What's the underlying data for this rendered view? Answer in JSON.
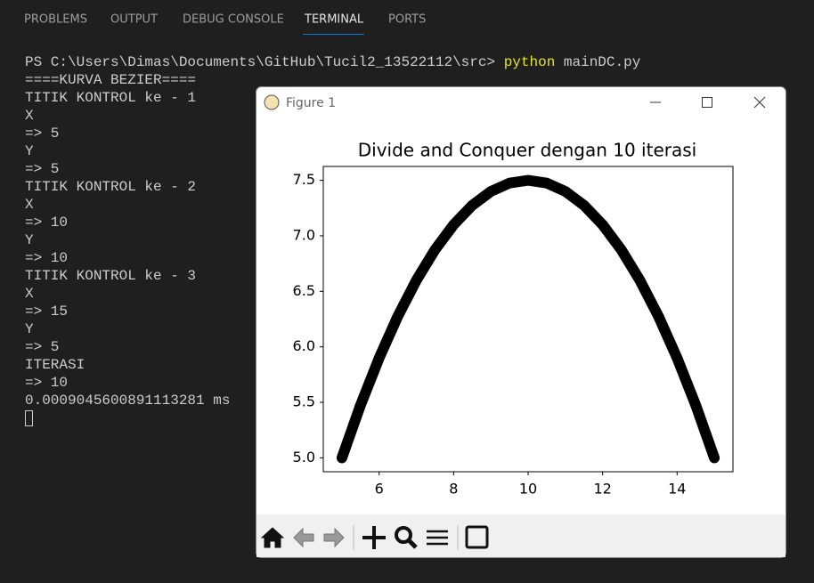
{
  "tabs": [
    "PROBLEMS",
    "OUTPUT",
    "DEBUG CONSOLE",
    "TERMINAL",
    "PORTS"
  ],
  "terminal": {
    "prompt": "PS C:\\Users\\Dimas\\Documents\\GitHub\\Tucil2_13522112\\src> ",
    "command": "python",
    "argument": " mainDC.py",
    "lines": [
      "====KURVA BEZIER====",
      "TITIK KONTROL ke - 1",
      "X",
      "=> 5",
      "Y",
      "=> 5",
      "TITIK KONTROL ke - 2",
      "X",
      "=> 10",
      "Y",
      "=> 10",
      "TITIK KONTROL ke - 3",
      "X",
      "=> 15",
      "Y",
      "=> 5",
      "ITERASI",
      "=> 10",
      "0.0009045600891113281 ms"
    ]
  },
  "window": {
    "title": "Figure 1"
  },
  "chart_data": {
    "type": "line",
    "title": "Divide and Conquer dengan 10 iterasi",
    "x": [
      5,
      5.5,
      6,
      6.5,
      7,
      7.5,
      8,
      8.5,
      9,
      9.5,
      10,
      10.5,
      11,
      11.5,
      12,
      12.5,
      13,
      13.5,
      14,
      14.5,
      15
    ],
    "y": [
      5,
      5.475,
      5.9,
      6.275,
      6.6,
      6.875,
      7.1,
      7.275,
      7.4,
      7.475,
      7.5,
      7.475,
      7.4,
      7.275,
      7.1,
      6.875,
      6.6,
      6.275,
      5.9,
      5.475,
      5
    ],
    "color": "#000000",
    "xlim": [
      4.5,
      15.5
    ],
    "ylim": [
      4.875,
      7.625
    ],
    "xticks": [
      6,
      8,
      10,
      12,
      14
    ],
    "yticks": [
      {
        "value": 5,
        "label": "5.0"
      },
      5.5,
      {
        "value": 6,
        "label": "6.0"
      },
      6.5,
      {
        "value": 7,
        "label": "7.0"
      },
      7.5
    ]
  }
}
